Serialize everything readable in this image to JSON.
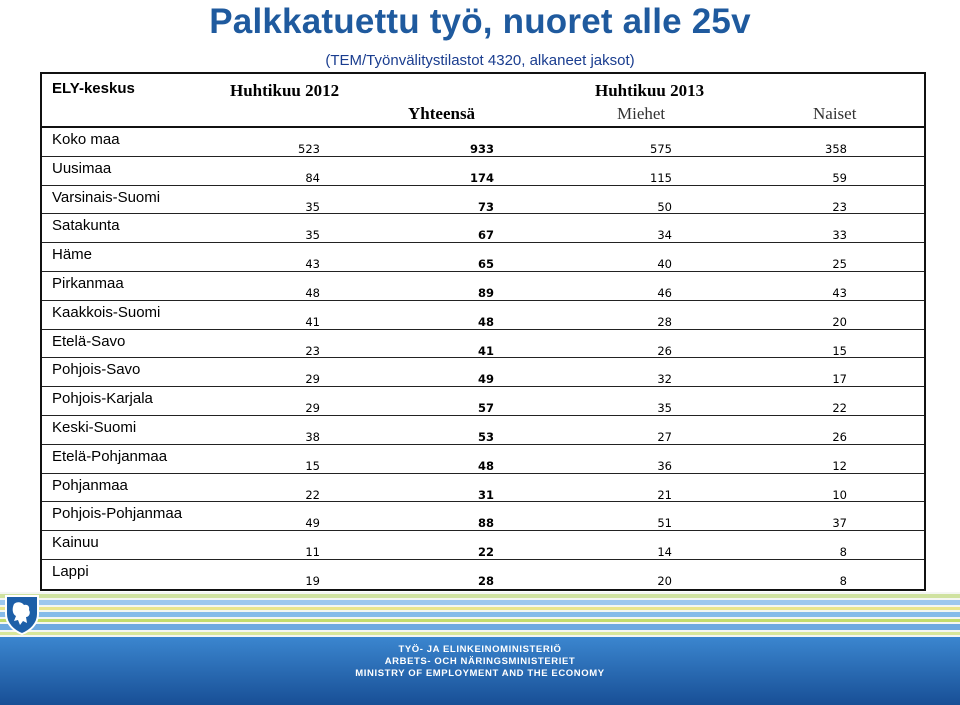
{
  "title": "Palkkatuettu työ, nuoret alle 25v",
  "subtitle": "(TEM/Työnvälitystilastot 4320, alkaneet jaksot)",
  "table": {
    "headers": {
      "region": "ELY-keskus",
      "period_2012": "Huhtikuu 2012",
      "period_2013": "Huhtikuu 2013",
      "total": "Yhteensä",
      "men": "Miehet",
      "women": "Naiset"
    },
    "rows": [
      {
        "name": "Koko maa",
        "y2012": "523",
        "total": "933",
        "men": "575",
        "women": "358"
      },
      {
        "name": "Uusimaa",
        "y2012": "84",
        "total": "174",
        "men": "115",
        "women": "59"
      },
      {
        "name": "Varsinais-Suomi",
        "y2012": "35",
        "total": "73",
        "men": "50",
        "women": "23"
      },
      {
        "name": "Satakunta",
        "y2012": "35",
        "total": "67",
        "men": "34",
        "women": "33"
      },
      {
        "name": "Häme",
        "y2012": "43",
        "total": "65",
        "men": "40",
        "women": "25"
      },
      {
        "name": "Pirkanmaa",
        "y2012": "48",
        "total": "89",
        "men": "46",
        "women": "43"
      },
      {
        "name": "Kaakkois-Suomi",
        "y2012": "41",
        "total": "48",
        "men": "28",
        "women": "20"
      },
      {
        "name": "Etelä-Savo",
        "y2012": "23",
        "total": "41",
        "men": "26",
        "women": "15"
      },
      {
        "name": "Pohjois-Savo",
        "y2012": "29",
        "total": "49",
        "men": "32",
        "women": "17"
      },
      {
        "name": "Pohjois-Karjala",
        "y2012": "29",
        "total": "57",
        "men": "35",
        "women": "22"
      },
      {
        "name": "Keski-Suomi",
        "y2012": "38",
        "total": "53",
        "men": "27",
        "women": "26"
      },
      {
        "name": "Etelä-Pohjanmaa",
        "y2012": "15",
        "total": "48",
        "men": "36",
        "women": "12"
      },
      {
        "name": "Pohjanmaa",
        "y2012": "22",
        "total": "31",
        "men": "21",
        "women": "10"
      },
      {
        "name": "Pohjois-Pohjanmaa",
        "y2012": "49",
        "total": "88",
        "men": "51",
        "women": "37"
      },
      {
        "name": "Kainuu",
        "y2012": "11",
        "total": "22",
        "men": "14",
        "women": "8"
      },
      {
        "name": "Lappi",
        "y2012": "19",
        "total": "28",
        "men": "20",
        "women": "8"
      }
    ]
  },
  "footer": {
    "logo_icon": "lion-coat-of-arms-icon",
    "line1": "TYÖ- JA ELINKEINOMINISTERIÖ",
    "line2": "ARBETS- OCH NÄRINGSMINISTERIET",
    "line3": "MINISTRY OF EMPLOYMENT AND THE ECONOMY"
  },
  "colors": {
    "title": "#1f5a9e",
    "subtitle": "#1a3d8f",
    "footer_blue": "#1d5fa8",
    "footer_stripe_blue": "#7fb5e6",
    "footer_stripe_green": "#bfd95a",
    "footer_stripe_yellow": "#e7e07a"
  }
}
